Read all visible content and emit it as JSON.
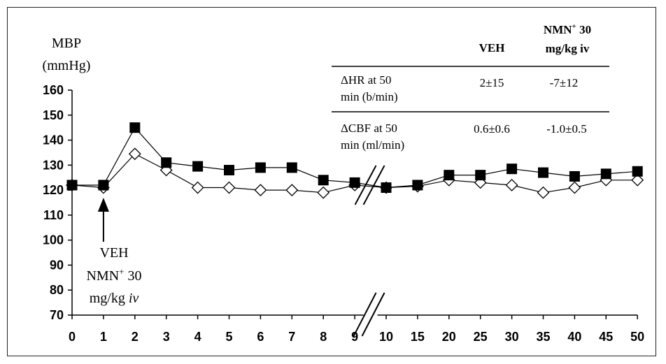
{
  "chart_data": {
    "type": "line",
    "ylabel_line1": "MBP",
    "ylabel_line2": "(mmHg)",
    "ylim": [
      70,
      160
    ],
    "yticks": [
      70,
      80,
      90,
      100,
      110,
      120,
      130,
      140,
      150,
      160
    ],
    "categories": [
      "0",
      "1",
      "2",
      "3",
      "4",
      "5",
      "6",
      "7",
      "8",
      "9",
      "10",
      "15",
      "20",
      "25",
      "30",
      "35",
      "40",
      "45",
      "50"
    ],
    "axis_break": "between 9 and 10",
    "grid": false,
    "series": [
      {
        "marker": "filled-square",
        "color": "#000000",
        "values": [
          122,
          122,
          145,
          131,
          129.5,
          128,
          129,
          129,
          124,
          123,
          121,
          122,
          126,
          126,
          128.5,
          127,
          125.5,
          126.5,
          127.5
        ]
      },
      {
        "marker": "open-diamond",
        "color": "#000000",
        "values": [
          122,
          121,
          134.5,
          128,
          121,
          121,
          120,
          120,
          119,
          122,
          121,
          121.5,
          124,
          123,
          122,
          119,
          121,
          124,
          124
        ]
      }
    ],
    "annotation": {
      "at_category": "1",
      "lines": [
        "VEH",
        "NMN",
        "mg/kg"
      ],
      "nmn_superscript": "+",
      "nmn_suffix": " 30",
      "iv": "iv"
    },
    "table": {
      "col1_header": "VEH",
      "col2_header_line1": "NMN",
      "col2_header_sup": "+",
      "col2_header_line1_suffix": " 30",
      "col2_header_line2": "mg/kg iv",
      "rows": [
        {
          "label_line1": "ΔHR at 50",
          "label_line2": "min (b/min)",
          "veh": "2±15",
          "nmn": "-7±12"
        },
        {
          "label_line1": "ΔCBF at 50",
          "label_line2": "min (ml/min)",
          "veh": "0.6±0.6",
          "nmn": "-1.0±0.5"
        }
      ]
    }
  }
}
